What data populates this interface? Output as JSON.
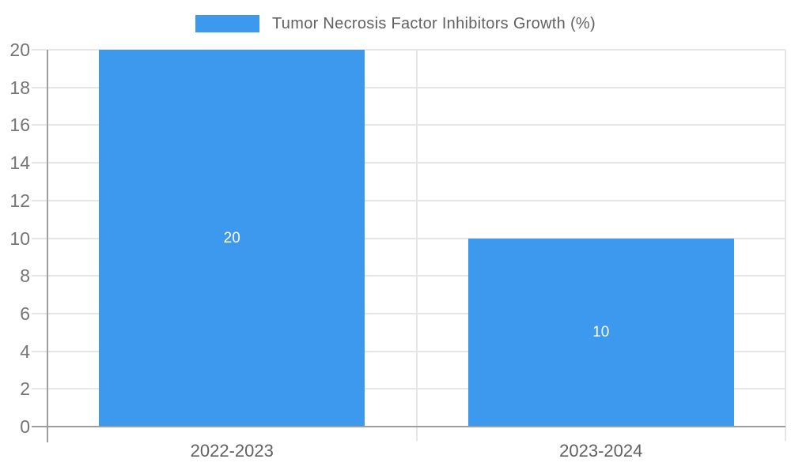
{
  "chart_data": {
    "type": "bar",
    "title": "Tumor Necrosis Factor Inhibitors Growth (%)",
    "categories": [
      "2022-2023",
      "2023-2024"
    ],
    "values": [
      20,
      10
    ],
    "value_labels": [
      "20",
      "10"
    ],
    "xlabel": "",
    "ylabel": "",
    "ylim": [
      0,
      20
    ],
    "ytick_step": 2,
    "yticks": [
      0,
      2,
      4,
      6,
      8,
      10,
      12,
      14,
      16,
      18,
      20
    ],
    "grid": true,
    "legend_position": "top-center",
    "colors": {
      "bar": "#3C99ED",
      "gridline": "#e6e6e6",
      "axis_line": "#9e9e9e",
      "tick_label": "#757575",
      "category_label": "#616161",
      "legend_label": "#616161",
      "value_label": "#ffffff",
      "background": "#ffffff"
    }
  }
}
